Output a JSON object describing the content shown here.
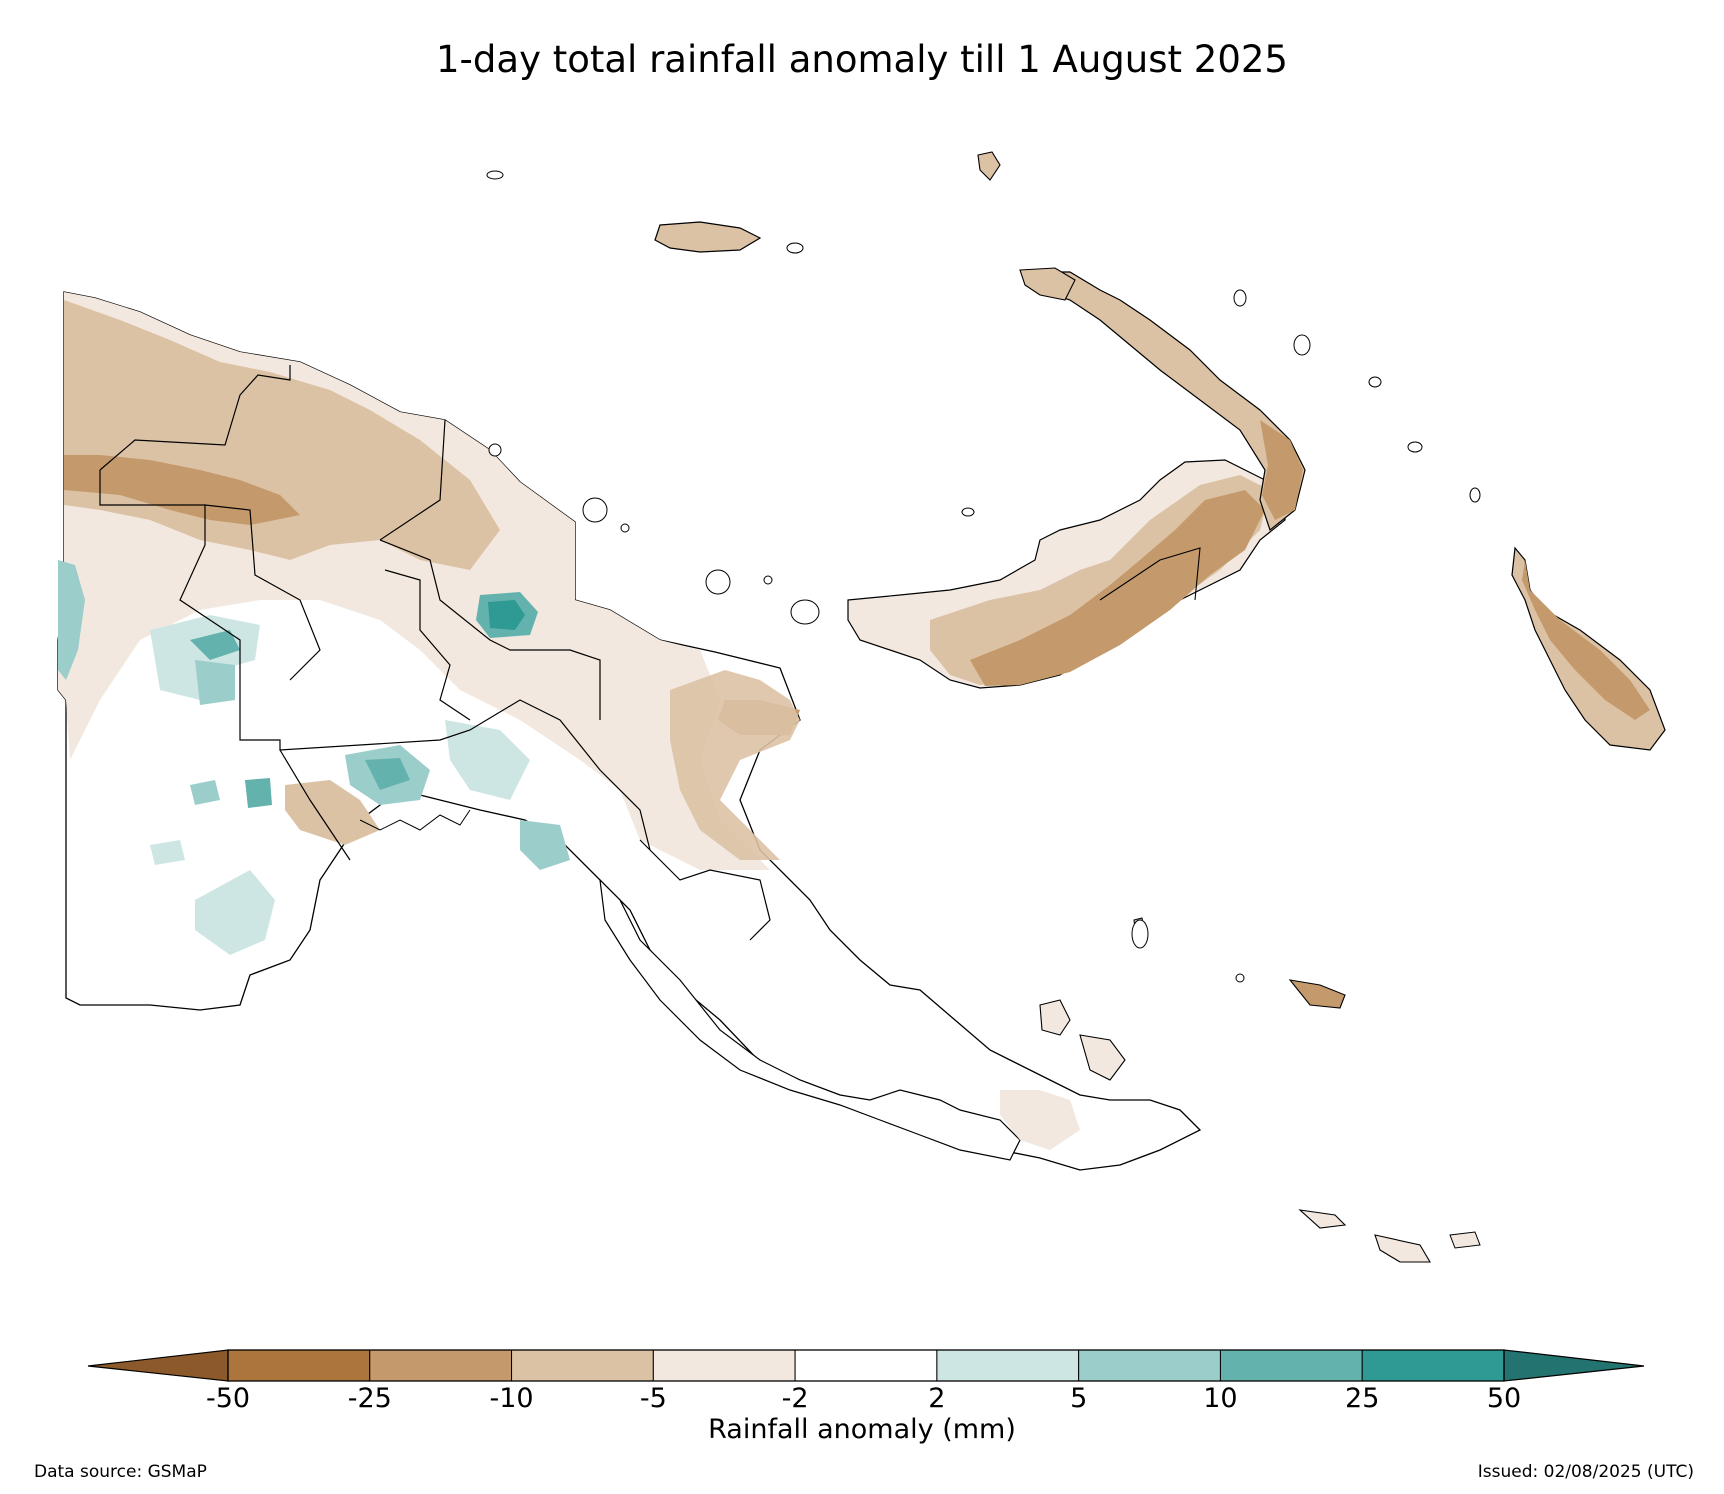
{
  "title": "1-day total rainfall anomaly till 1 August 2025",
  "colorbar": {
    "label": "Rainfall anomaly (mm)",
    "ticks": [
      "-50",
      "-25",
      "-10",
      "-5",
      "-2",
      "2",
      "5",
      "10",
      "25",
      "50"
    ],
    "colors": {
      "low_extend": "#8c5a2a",
      "bins": [
        "#ad753e",
        "#c49a6c",
        "#dcc2a5",
        "#f2e8df",
        "#ffffff",
        "#cde6e4",
        "#9bcdca",
        "#64b2ae",
        "#2f9a94"
      ],
      "high_extend": "#237470"
    }
  },
  "footer": {
    "source": "Data source: GSMaP",
    "issued": "Issued: 02/08/2025 (UTC)"
  }
}
